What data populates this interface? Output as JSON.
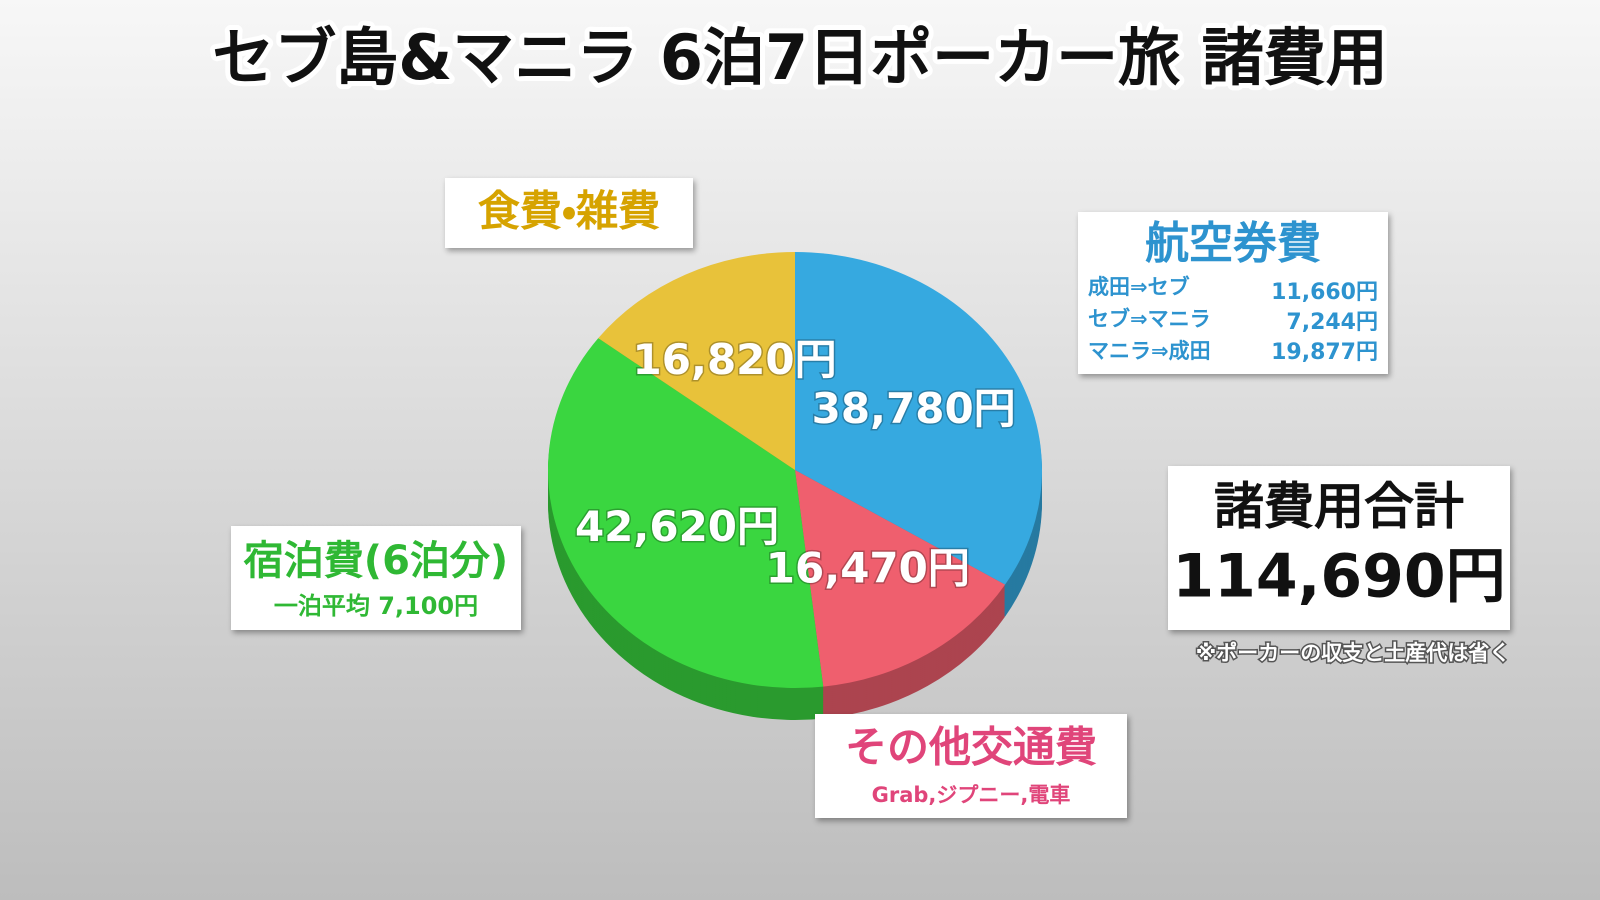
{
  "chart_data": {
    "type": "pie",
    "title": "セブ島&マニラ 6泊7日ポーカー旅 諸費用",
    "categories": [
      "航空券費",
      "その他交通費",
      "宿泊費(6泊分)",
      "食費・雑費"
    ],
    "values": [
      38780,
      16470,
      42620,
      16820
    ],
    "value_labels": [
      "38,780円",
      "16,470円",
      "42,620円",
      "16,820円"
    ],
    "colors": [
      "#36a9e0",
      "#ef5f6e",
      "#3ad640",
      "#e8c23a"
    ],
    "annotations": {
      "airfare_breakdown": [
        {
          "route": "成田⇒セブ",
          "amount": "11,660円"
        },
        {
          "route": "セブ⇒マニラ",
          "amount": "7,244円"
        },
        {
          "route": "マニラ⇒成田",
          "amount": "19,877円"
        }
      ],
      "lodging_note": "一泊平均 7,100円",
      "transport_note": "Grab,ジプニー,電車",
      "total": {
        "label": "諸費用合計",
        "amount": "114,690円"
      },
      "footnote": "※ポーカーの収支と土産代は省く"
    }
  }
}
